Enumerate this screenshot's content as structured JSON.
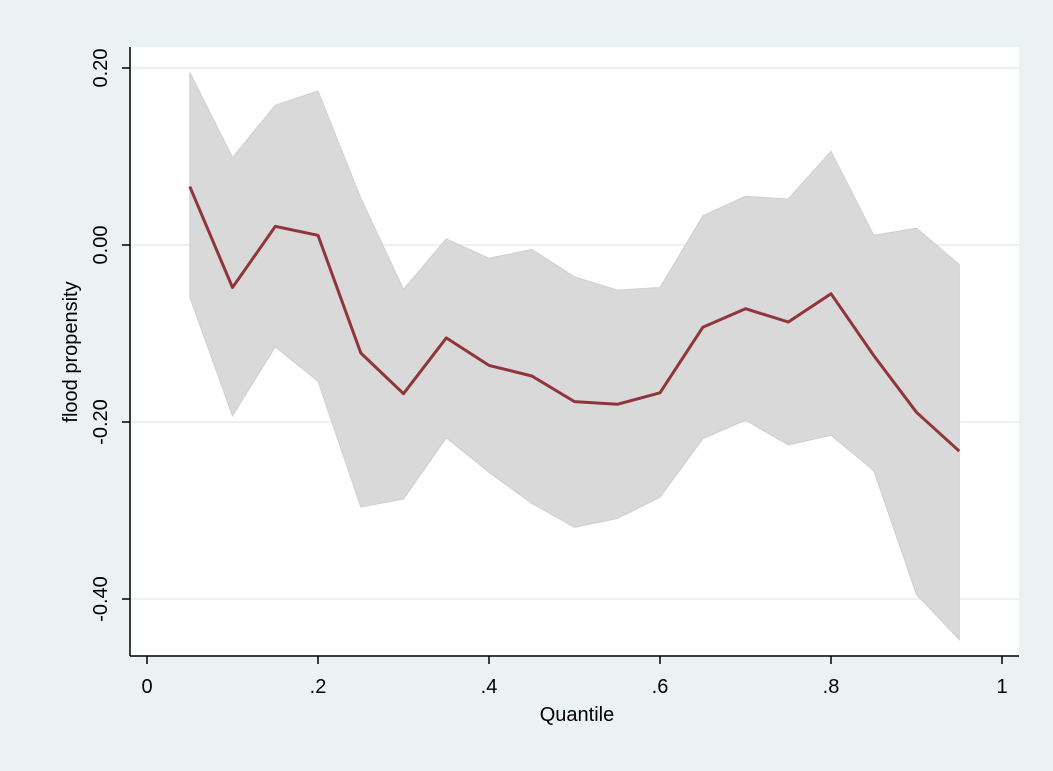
{
  "chart_data": {
    "type": "line",
    "title": "",
    "xlabel": "Quantile",
    "ylabel": "flood propensity",
    "xlim": [
      0,
      1
    ],
    "ylim": [
      -0.46,
      0.2
    ],
    "x_ticks": [
      0,
      0.2,
      0.4,
      0.6,
      0.8,
      1
    ],
    "x_tick_labels": [
      "0",
      ".2",
      ".4",
      ".6",
      ".8",
      "1"
    ],
    "y_ticks": [
      0.2,
      0.0,
      -0.2,
      -0.4
    ],
    "y_tick_labels": [
      "0.20",
      "0.00",
      "-0.20",
      "-0.40"
    ],
    "grid": true,
    "x": [
      0.05,
      0.1,
      0.15,
      0.2,
      0.25,
      0.3,
      0.35,
      0.4,
      0.45,
      0.5,
      0.55,
      0.6,
      0.65,
      0.7,
      0.75,
      0.8,
      0.85,
      0.9,
      0.95
    ],
    "series": [
      {
        "type": "line",
        "values": [
          0.066,
          -0.048,
          0.021,
          0.011,
          -0.122,
          -0.168,
          -0.105,
          -0.136,
          -0.148,
          -0.177,
          -0.18,
          -0.167,
          -0.093,
          -0.072,
          -0.087,
          -0.055,
          -0.125,
          -0.189,
          -0.233
        ]
      },
      {
        "type": "band",
        "lower": [
          -0.059,
          -0.193,
          -0.115,
          -0.154,
          -0.296,
          -0.287,
          -0.218,
          -0.257,
          -0.292,
          -0.319,
          -0.309,
          -0.285,
          -0.219,
          -0.198,
          -0.226,
          -0.215,
          -0.255,
          -0.395,
          -0.446
        ],
        "upper": [
          0.195,
          0.099,
          0.158,
          0.174,
          0.053,
          -0.05,
          0.007,
          -0.015,
          -0.005,
          -0.036,
          -0.051,
          -0.048,
          0.033,
          0.055,
          0.052,
          0.106,
          0.011,
          0.019,
          -0.022
        ]
      }
    ],
    "colors": {
      "outer_bg": "#eaf2f3",
      "plot_bg": "#ffffff",
      "grid": "#eaf2f3",
      "line": "#90353b",
      "band": "#d9d9d9",
      "axis": "#000000"
    }
  }
}
